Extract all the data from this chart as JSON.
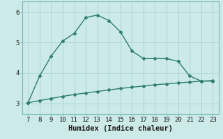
{
  "xlabel": "Humidex (Indice chaleur)",
  "x": [
    7,
    8,
    9,
    10,
    11,
    12,
    13,
    14,
    15,
    16,
    17,
    18,
    19,
    20,
    21,
    22,
    23
  ],
  "y_upper": [
    3.02,
    3.9,
    4.55,
    5.05,
    5.3,
    5.82,
    5.9,
    5.72,
    5.35,
    4.72,
    4.47,
    4.47,
    4.47,
    4.38,
    3.9,
    3.73,
    3.73
  ],
  "y_lower": [
    3.02,
    3.09,
    3.16,
    3.23,
    3.29,
    3.34,
    3.39,
    3.44,
    3.49,
    3.53,
    3.57,
    3.61,
    3.64,
    3.67,
    3.7,
    3.73,
    3.75
  ],
  "line_color": "#2e7d6e",
  "bg_color": "#cceae7",
  "grid_color": "#aad4d0",
  "marker": "D",
  "marker_size": 2.5,
  "line_width": 1.0,
  "ylim": [
    2.65,
    6.35
  ],
  "xlim": [
    6.5,
    23.5
  ],
  "yticks": [
    3,
    4,
    5,
    6
  ],
  "xticks": [
    7,
    8,
    9,
    10,
    11,
    12,
    13,
    14,
    15,
    16,
    17,
    18,
    19,
    20,
    21,
    22,
    23
  ],
  "xlabel_fontsize": 7.5,
  "tick_fontsize": 6.5
}
